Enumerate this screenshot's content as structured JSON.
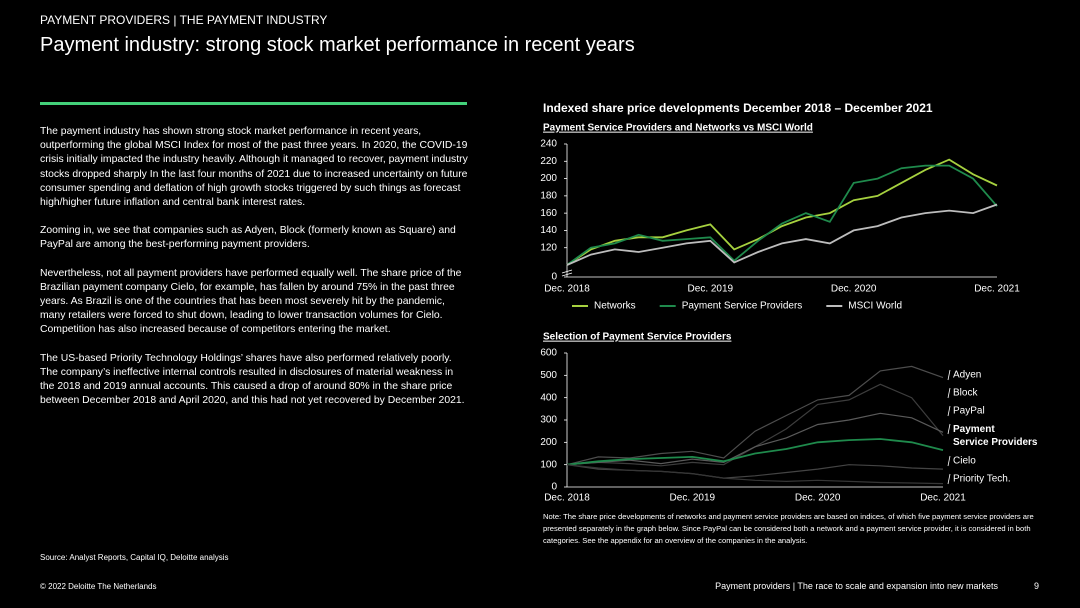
{
  "header": {
    "section": "PAYMENT PROVIDERS | THE PAYMENT INDUSTRY",
    "title": "Payment industry: strong stock market performance in recent years"
  },
  "body": {
    "paragraphs": [
      "The payment industry has shown strong stock market performance in recent years, outperforming the global MSCI Index for most of the past three years. In 2020, the COVID-19 crisis initially impacted the industry heavily. Although it managed to recover, payment industry stocks dropped sharply In the last four months of 2021 due to increased uncertainty on future consumer spending and deflation of high growth stocks triggered by such things as forecast high/higher future inflation and central bank interest rates.",
      "Zooming in, we see that companies such as Adyen, Block (formerly known as Square) and PayPal are among the best-performing payment providers.",
      "Nevertheless, not all payment providers have performed equally well. The share price of the Brazilian payment company Cielo, for example, has fallen by around 75% in the past three years. As Brazil is one of the countries that has been most severely hit by the pandemic, many retailers were forced to shut down, leading to lower transaction volumes for Cielo. Competition has also increased because of competitors entering the market.",
      "The US-based Priority Technology Holdings’ shares have also performed relatively poorly. The company’s ineffective internal controls resulted in disclosures of material weakness in the 2018 and 2019 annual accounts. This caused a drop of around 80% in the share price between December 2018 and April 2020, and this had not yet recovered by December 2021."
    ]
  },
  "charts_heading": "Indexed share price developments December 2018 – December 2021",
  "note": "Note: The share price developments of networks and payment service providers are based on indices, of which five payment service providers are presented separately in the graph below. Since PayPal can be considered both a network and a payment service provider, it is considered in both categories. See the appendix for an overview of the companies in the analysis.",
  "source": "Source: Analyst Reports, Capital IQ, Deloitte analysis",
  "footer": {
    "copyright": "© 2022 Deloitte The Netherlands",
    "tagline": "Payment providers | The race to scale and expansion into new markets",
    "page": 9
  },
  "chart_data": [
    {
      "type": "line",
      "title": "Payment Service Providers and Networks vs MSCI World",
      "categories": [
        "Dec. 2018",
        null,
        null,
        null,
        null,
        null,
        "Dec. 2019",
        null,
        null,
        null,
        null,
        null,
        "Dec. 2020",
        null,
        null,
        null,
        null,
        null,
        "Dec. 2021"
      ],
      "series": [
        {
          "name": "Networks",
          "color": "#a6d13f",
          "values": [
            100,
            118,
            128,
            132,
            132,
            140,
            147,
            118,
            130,
            145,
            155,
            160,
            175,
            180,
            195,
            210,
            222,
            205,
            192
          ]
        },
        {
          "name": "Payment Service Providers",
          "color": "#1f8a4c",
          "values": [
            100,
            120,
            125,
            135,
            128,
            130,
            132,
            105,
            128,
            148,
            160,
            150,
            195,
            200,
            212,
            215,
            215,
            200,
            168
          ]
        },
        {
          "name": "MSCI World",
          "color": "#bdbdbd",
          "values": [
            100,
            112,
            118,
            115,
            120,
            125,
            128,
            103,
            115,
            125,
            130,
            125,
            140,
            145,
            155,
            160,
            163,
            160,
            170
          ]
        }
      ],
      "ylim": [
        0,
        240
      ],
      "yticks": [
        0,
        120,
        140,
        160,
        180,
        200,
        220,
        240
      ],
      "axis_break": true,
      "legend": "bottom"
    },
    {
      "type": "line",
      "title": "Selection of Payment Service Providers",
      "categories": [
        "Dec. 2018",
        null,
        null,
        null,
        "Dec. 2019",
        null,
        null,
        null,
        "Dec. 2020",
        null,
        null,
        null,
        "Dec. 2021"
      ],
      "series": [
        {
          "name": "Adyen",
          "color": "#4d4d4d",
          "values": [
            100,
            135,
            130,
            150,
            160,
            130,
            250,
            320,
            390,
            410,
            520,
            540,
            490
          ]
        },
        {
          "name": "Block",
          "color": "#3d3d3d",
          "values": [
            100,
            110,
            105,
            95,
            110,
            100,
            180,
            260,
            370,
            390,
            460,
            400,
            230
          ]
        },
        {
          "name": "PayPal",
          "color": "#5a5a5a",
          "values": [
            100,
            110,
            120,
            105,
            125,
            110,
            180,
            220,
            280,
            300,
            330,
            310,
            245
          ]
        },
        {
          "name": "Payment Service Providers",
          "color": "#1f8a4c",
          "bold": true,
          "values": [
            100,
            115,
            125,
            130,
            135,
            115,
            150,
            170,
            200,
            210,
            215,
            200,
            165
          ]
        },
        {
          "name": "Priority Tech.",
          "color": "#444444",
          "values": [
            100,
            80,
            75,
            70,
            60,
            40,
            50,
            65,
            80,
            100,
            95,
            85,
            80
          ]
        },
        {
          "name": "Cielo",
          "color": "#363636",
          "values": [
            100,
            85,
            75,
            70,
            60,
            40,
            30,
            25,
            30,
            25,
            20,
            18,
            15
          ]
        }
      ],
      "ylim": [
        0,
        600
      ],
      "yticks": [
        0,
        100,
        200,
        300,
        400,
        500,
        600
      ],
      "legend": "right"
    }
  ]
}
